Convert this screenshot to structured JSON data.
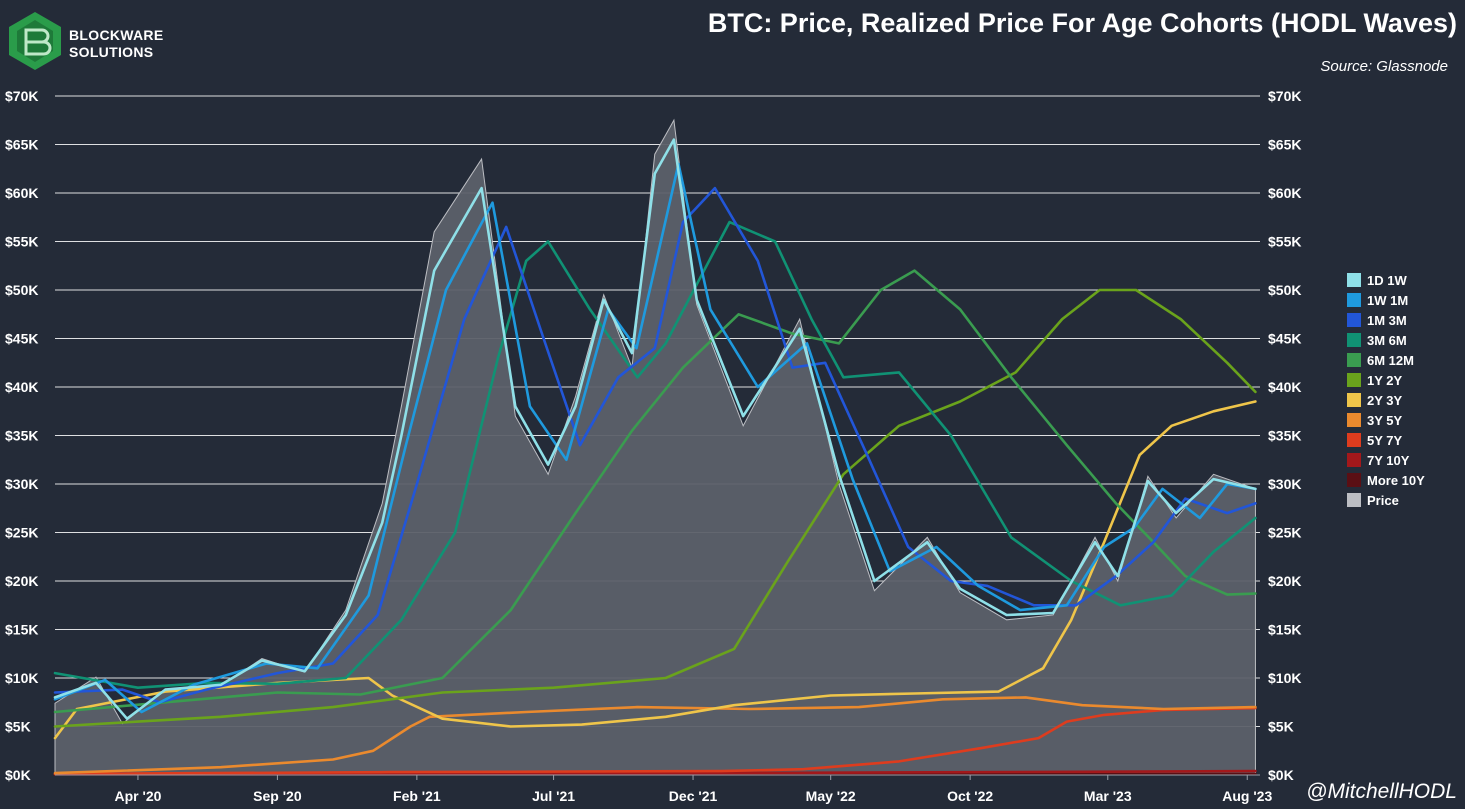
{
  "logo": {
    "line1": "BLOCKWARE",
    "line2": "SOLUTIONS"
  },
  "title": "BTC: Price, Realized Price For Age Cohorts (HODL Waves)",
  "source": "Source: Glassnode",
  "watermark": "@MitchellHODL",
  "colors": {
    "background": "#242b38",
    "grid": "#ffffff",
    "price_fill": "#5c6069"
  },
  "chart_data": {
    "type": "line",
    "title": "BTC: Price, Realized Price For Age Cohorts (HODL Waves)",
    "x_ticks": [
      "Apr '20",
      "Sep '20",
      "Feb '21",
      "Jul '21",
      "Dec '21",
      "May '22",
      "Oct '22",
      "Mar '23",
      "Aug '23"
    ],
    "x_tick_dates": [
      "2020-04-01",
      "2020-09-01",
      "2021-02-01",
      "2021-07-01",
      "2021-12-01",
      "2022-05-01",
      "2022-10-01",
      "2023-03-01",
      "2023-08-01"
    ],
    "y_ticks": [
      "$0K",
      "$5K",
      "$10K",
      "$15K",
      "$20K",
      "$25K",
      "$30K",
      "$35K",
      "$40K",
      "$45K",
      "$50K",
      "$55K",
      "$60K",
      "$65K",
      "$70K"
    ],
    "ylim": [
      0,
      70000
    ],
    "xlim": [
      "2020-01-01",
      "2023-08-15"
    ],
    "grid": true,
    "legend_position": "right",
    "series": [
      {
        "name": "1D 1W",
        "color": "#8fe0e8",
        "points": [
          [
            "2020-01-01",
            8000
          ],
          [
            "2020-02-15",
            9500
          ],
          [
            "2020-03-20",
            5800
          ],
          [
            "2020-05-01",
            8800
          ],
          [
            "2020-07-01",
            9300
          ],
          [
            "2020-08-15",
            11800
          ],
          [
            "2020-10-01",
            10700
          ],
          [
            "2020-11-15",
            16500
          ],
          [
            "2020-12-25",
            26000
          ],
          [
            "2021-01-15",
            35000
          ],
          [
            "2021-02-20",
            52000
          ],
          [
            "2021-04-13",
            60500
          ],
          [
            "2021-05-20",
            38000
          ],
          [
            "2021-06-25",
            32000
          ],
          [
            "2021-07-25",
            38000
          ],
          [
            "2021-08-25",
            49000
          ],
          [
            "2021-09-25",
            43500
          ],
          [
            "2021-10-20",
            62000
          ],
          [
            "2021-11-10",
            65500
          ],
          [
            "2021-12-05",
            49000
          ],
          [
            "2022-01-25",
            37000
          ],
          [
            "2022-03-28",
            46000
          ],
          [
            "2022-05-10",
            31000
          ],
          [
            "2022-06-18",
            20000
          ],
          [
            "2022-08-15",
            24000
          ],
          [
            "2022-09-20",
            19200
          ],
          [
            "2022-11-10",
            16500
          ],
          [
            "2022-12-31",
            16700
          ],
          [
            "2023-02-15",
            24000
          ],
          [
            "2023-03-12",
            20500
          ],
          [
            "2023-04-14",
            30300
          ],
          [
            "2023-05-15",
            27000
          ],
          [
            "2023-06-25",
            30500
          ],
          [
            "2023-08-10",
            29500
          ]
        ]
      },
      {
        "name": "1W 1M",
        "color": "#1f9ade",
        "points": [
          [
            "2020-01-01",
            7800
          ],
          [
            "2020-02-25",
            9800
          ],
          [
            "2020-04-05",
            6500
          ],
          [
            "2020-06-01",
            9300
          ],
          [
            "2020-08-20",
            11500
          ],
          [
            "2020-10-15",
            11000
          ],
          [
            "2020-12-10",
            18500
          ],
          [
            "2021-01-20",
            34000
          ],
          [
            "2021-03-05",
            50000
          ],
          [
            "2021-04-25",
            59000
          ],
          [
            "2021-06-05",
            38000
          ],
          [
            "2021-07-15",
            32500
          ],
          [
            "2021-08-30",
            48000
          ],
          [
            "2021-09-30",
            44000
          ],
          [
            "2021-11-15",
            63000
          ],
          [
            "2021-12-20",
            48000
          ],
          [
            "2022-02-10",
            40000
          ],
          [
            "2022-04-05",
            44500
          ],
          [
            "2022-05-25",
            30500
          ],
          [
            "2022-07-05",
            21000
          ],
          [
            "2022-08-25",
            23500
          ],
          [
            "2022-10-10",
            19500
          ],
          [
            "2022-11-25",
            17000
          ],
          [
            "2023-01-15",
            17500
          ],
          [
            "2023-02-25",
            23500
          ],
          [
            "2023-03-30",
            25500
          ],
          [
            "2023-04-30",
            29500
          ],
          [
            "2023-06-10",
            26500
          ],
          [
            "2023-07-10",
            30000
          ],
          [
            "2023-08-10",
            29500
          ]
        ]
      },
      {
        "name": "1M 3M",
        "color": "#2256d8",
        "points": [
          [
            "2020-01-01",
            8500
          ],
          [
            "2020-03-15",
            8800
          ],
          [
            "2020-04-25",
            7500
          ],
          [
            "2020-06-15",
            8800
          ],
          [
            "2020-09-01",
            10500
          ],
          [
            "2020-11-01",
            11500
          ],
          [
            "2020-12-20",
            16500
          ],
          [
            "2021-02-01",
            30000
          ],
          [
            "2021-03-25",
            47000
          ],
          [
            "2021-05-10",
            56500
          ],
          [
            "2021-06-20",
            45000
          ],
          [
            "2021-07-30",
            34000
          ],
          [
            "2021-09-10",
            41000
          ],
          [
            "2021-10-20",
            44000
          ],
          [
            "2021-11-20",
            57000
          ],
          [
            "2021-12-25",
            60500
          ],
          [
            "2022-02-10",
            53000
          ],
          [
            "2022-03-20",
            42000
          ],
          [
            "2022-04-25",
            42500
          ],
          [
            "2022-06-10",
            33000
          ],
          [
            "2022-07-25",
            23500
          ],
          [
            "2022-09-10",
            20000
          ],
          [
            "2022-10-20",
            19500
          ],
          [
            "2022-12-10",
            17500
          ],
          [
            "2023-01-25",
            17500
          ],
          [
            "2023-03-10",
            20500
          ],
          [
            "2023-04-20",
            24000
          ],
          [
            "2023-05-25",
            28500
          ],
          [
            "2023-07-10",
            27000
          ],
          [
            "2023-08-10",
            28000
          ]
        ]
      },
      {
        "name": "3M 6M",
        "color": "#109274",
        "points": [
          [
            "2020-01-01",
            10500
          ],
          [
            "2020-04-01",
            9000
          ],
          [
            "2020-06-15",
            9500
          ],
          [
            "2020-09-01",
            9400
          ],
          [
            "2020-11-15",
            10000
          ],
          [
            "2021-01-15",
            16000
          ],
          [
            "2021-03-15",
            25000
          ],
          [
            "2021-05-01",
            43000
          ],
          [
            "2021-06-01",
            53000
          ],
          [
            "2021-06-25",
            55000
          ],
          [
            "2021-08-10",
            48000
          ],
          [
            "2021-10-01",
            41000
          ],
          [
            "2021-11-01",
            44500
          ],
          [
            "2022-01-10",
            57000
          ],
          [
            "2022-03-01",
            55000
          ],
          [
            "2022-04-10",
            47000
          ],
          [
            "2022-05-15",
            41000
          ],
          [
            "2022-07-15",
            41500
          ],
          [
            "2022-09-10",
            35000
          ],
          [
            "2022-11-15",
            24500
          ],
          [
            "2023-01-20",
            20000
          ],
          [
            "2023-03-15",
            17500
          ],
          [
            "2023-05-10",
            18500
          ],
          [
            "2023-06-25",
            23000
          ],
          [
            "2023-08-10",
            26500
          ]
        ]
      },
      {
        "name": "6M 12M",
        "color": "#3a9c50",
        "points": [
          [
            "2020-01-01",
            6500
          ],
          [
            "2020-05-01",
            7500
          ],
          [
            "2020-09-01",
            8500
          ],
          [
            "2020-12-01",
            8300
          ],
          [
            "2021-03-01",
            10000
          ],
          [
            "2021-05-15",
            17000
          ],
          [
            "2021-07-25",
            27000
          ],
          [
            "2021-09-25",
            35500
          ],
          [
            "2021-11-20",
            42000
          ],
          [
            "2022-01-20",
            47500
          ],
          [
            "2022-03-20",
            45500
          ],
          [
            "2022-05-10",
            44500
          ],
          [
            "2022-06-25",
            50000
          ],
          [
            "2022-08-01",
            52000
          ],
          [
            "2022-09-20",
            48000
          ],
          [
            "2022-11-15",
            41000
          ],
          [
            "2023-01-15",
            34000
          ],
          [
            "2023-03-10",
            28000
          ],
          [
            "2023-04-20",
            24000
          ],
          [
            "2023-05-25",
            20500
          ],
          [
            "2023-07-10",
            18600
          ],
          [
            "2023-08-10",
            18700
          ]
        ]
      },
      {
        "name": "1Y 2Y",
        "color": "#6aa31c",
        "points": [
          [
            "2020-01-01",
            5000
          ],
          [
            "2020-04-01",
            5500
          ],
          [
            "2020-07-01",
            6000
          ],
          [
            "2020-11-01",
            7000
          ],
          [
            "2021-03-01",
            8500
          ],
          [
            "2021-07-01",
            9000
          ],
          [
            "2021-11-01",
            10000
          ],
          [
            "2022-01-15",
            13000
          ],
          [
            "2022-03-15",
            22000
          ],
          [
            "2022-05-15",
            31000
          ],
          [
            "2022-07-15",
            36000
          ],
          [
            "2022-09-20",
            38500
          ],
          [
            "2022-11-20",
            41500
          ],
          [
            "2023-01-10",
            47000
          ],
          [
            "2023-02-20",
            50000
          ],
          [
            "2023-04-01",
            50000
          ],
          [
            "2023-05-20",
            47000
          ],
          [
            "2023-07-10",
            42500
          ],
          [
            "2023-08-10",
            39500
          ]
        ]
      },
      {
        "name": "2Y 3Y",
        "color": "#efc54a",
        "points": [
          [
            "2020-01-01",
            3800
          ],
          [
            "2020-01-25",
            6800
          ],
          [
            "2020-05-01",
            8600
          ],
          [
            "2020-09-01",
            9500
          ],
          [
            "2020-12-10",
            10000
          ],
          [
            "2021-01-05",
            8200
          ],
          [
            "2021-03-01",
            5800
          ],
          [
            "2021-05-15",
            5000
          ],
          [
            "2021-08-01",
            5200
          ],
          [
            "2021-11-01",
            6000
          ],
          [
            "2022-01-15",
            7200
          ],
          [
            "2022-05-01",
            8200
          ],
          [
            "2022-08-01",
            8400
          ],
          [
            "2022-11-01",
            8600
          ],
          [
            "2022-12-20",
            11000
          ],
          [
            "2023-01-20",
            16000
          ],
          [
            "2023-02-25",
            24000
          ],
          [
            "2023-04-05",
            33000
          ],
          [
            "2023-05-10",
            36000
          ],
          [
            "2023-06-25",
            37500
          ],
          [
            "2023-08-10",
            38500
          ]
        ]
      },
      {
        "name": "3Y 5Y",
        "color": "#ea8a2e",
        "points": [
          [
            "2020-01-01",
            200
          ],
          [
            "2020-07-01",
            800
          ],
          [
            "2020-11-01",
            1600
          ],
          [
            "2020-12-15",
            2500
          ],
          [
            "2021-01-25",
            5000
          ],
          [
            "2021-02-15",
            6000
          ],
          [
            "2021-06-01",
            6500
          ],
          [
            "2021-10-01",
            7000
          ],
          [
            "2022-02-01",
            6800
          ],
          [
            "2022-06-01",
            7000
          ],
          [
            "2022-09-01",
            7800
          ],
          [
            "2022-12-01",
            8000
          ],
          [
            "2023-02-01",
            7200
          ],
          [
            "2023-05-01",
            6800
          ],
          [
            "2023-08-10",
            7000
          ]
        ]
      },
      {
        "name": "5Y 7Y",
        "color": "#de3c1e",
        "points": [
          [
            "2020-01-01",
            100
          ],
          [
            "2021-01-01",
            300
          ],
          [
            "2022-01-01",
            400
          ],
          [
            "2022-04-01",
            600
          ],
          [
            "2022-07-15",
            1400
          ],
          [
            "2022-10-15",
            2800
          ],
          [
            "2022-12-15",
            3800
          ],
          [
            "2023-01-15",
            5500
          ],
          [
            "2023-02-25",
            6200
          ],
          [
            "2023-05-01",
            6700
          ],
          [
            "2023-08-10",
            6900
          ]
        ]
      },
      {
        "name": "7Y 10Y",
        "color": "#a3181b",
        "points": [
          [
            "2020-01-01",
            100
          ],
          [
            "2022-01-01",
            200
          ],
          [
            "2023-08-10",
            400
          ]
        ]
      },
      {
        "name": "More 10Y",
        "color": "#5a0f14",
        "points": [
          [
            "2020-01-01",
            50
          ],
          [
            "2023-08-10",
            80
          ]
        ]
      },
      {
        "name": "Price",
        "color": "#bcbec3",
        "points": [
          [
            "2020-01-01",
            7400
          ],
          [
            "2020-02-15",
            10100
          ],
          [
            "2020-03-15",
            5300
          ],
          [
            "2020-05-01",
            8800
          ],
          [
            "2020-07-01",
            9200
          ],
          [
            "2020-08-15",
            12000
          ],
          [
            "2020-10-01",
            10600
          ],
          [
            "2020-11-15",
            17000
          ],
          [
            "2020-12-25",
            28000
          ],
          [
            "2021-01-15",
            38000
          ],
          [
            "2021-02-20",
            56000
          ],
          [
            "2021-04-13",
            63500
          ],
          [
            "2021-05-20",
            37000
          ],
          [
            "2021-06-25",
            31000
          ],
          [
            "2021-07-25",
            39000
          ],
          [
            "2021-08-25",
            49500
          ],
          [
            "2021-09-25",
            42000
          ],
          [
            "2021-10-20",
            64000
          ],
          [
            "2021-11-10",
            67500
          ],
          [
            "2021-12-05",
            48500
          ],
          [
            "2022-01-25",
            36000
          ],
          [
            "2022-03-28",
            47000
          ],
          [
            "2022-05-10",
            30000
          ],
          [
            "2022-06-18",
            19000
          ],
          [
            "2022-08-15",
            24500
          ],
          [
            "2022-09-20",
            18800
          ],
          [
            "2022-11-10",
            16000
          ],
          [
            "2022-12-31",
            16500
          ],
          [
            "2023-02-15",
            24500
          ],
          [
            "2023-03-12",
            20000
          ],
          [
            "2023-04-14",
            30800
          ],
          [
            "2023-05-15",
            26500
          ],
          [
            "2023-06-25",
            31000
          ],
          [
            "2023-08-10",
            29500
          ]
        ]
      }
    ]
  }
}
